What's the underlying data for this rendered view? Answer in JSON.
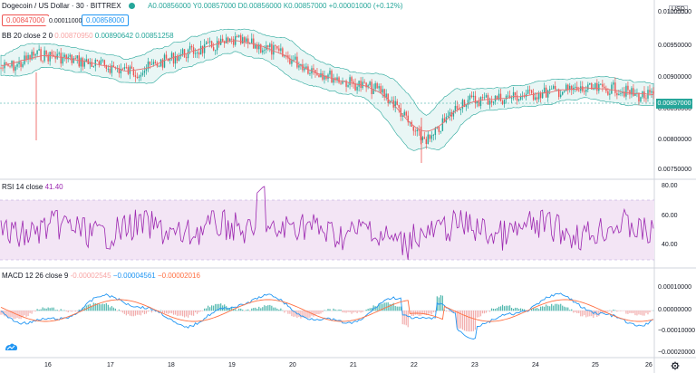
{
  "header": {
    "symbol": "Dogecoin / US Dollar · 30 · BITTREX",
    "ohlc": "A0.00856000 Y0.00857000 D0.00856000 K0.00857000 +0.00001000 (+0.12%)",
    "bid": "0.00847000",
    "spread": "0.00011000",
    "ask": "0.00858000"
  },
  "indicators": {
    "bb": {
      "title": "BB 20 close 2 0",
      "v1": "0.00870950",
      "v2": "0.00890642",
      "v3": "0.00851258"
    },
    "rsi": {
      "title": "RSI 14 close",
      "value": "41.40"
    },
    "macd": {
      "title": "MACD 12 26 close 9",
      "v1": "-0.00002545",
      "v2": "−0.00004561",
      "v3": "−0.00002016"
    }
  },
  "price_axis": {
    "currency": "USD",
    "last_price": "0.00857000",
    "main_ticks": [
      "0.01000000",
      "0.00950000",
      "0.00900000",
      "0.00850000",
      "0.00800000",
      "0.00750000"
    ],
    "rsi_ticks": [
      "80.00",
      "60.00",
      "40.00"
    ],
    "macd_ticks": [
      "0.00010000",
      "0.00000000",
      "−0.00010000",
      "−0.00020000"
    ]
  },
  "time_axis": [
    "16",
    "17",
    "18",
    "19",
    "20",
    "21",
    "22",
    "23",
    "24",
    "25",
    "26"
  ],
  "colors": {
    "up": "#26a69a",
    "down": "#ef5350",
    "bb_basis": "#e57373",
    "bb_fill": "#e0f2f1",
    "rsi": "#9c27b0",
    "rsi_band": "#f3e5f5",
    "macd": "#2196f3",
    "signal": "#ff7043"
  },
  "icons": {
    "eye": "eye-icon",
    "settings": "gear-icon",
    "logo": "tradingview-logo-icon"
  }
}
